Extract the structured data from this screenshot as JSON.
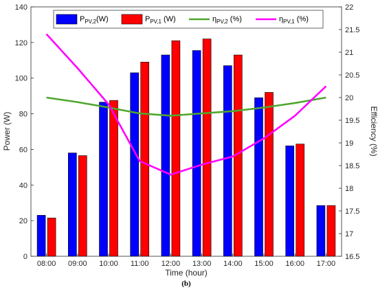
{
  "chart_data": {
    "type": "bar",
    "categories": [
      "08:00",
      "09:00",
      "10:00",
      "11:00",
      "12:00",
      "13:00",
      "14:00",
      "15:00",
      "16:00",
      "17:00"
    ],
    "series": [
      {
        "name": "P_PV,2 (W)",
        "label_main": "P",
        "label_sub": "PV,2",
        "label_tail": "(W)",
        "axis": "left",
        "kind": "bar",
        "color": "#0000ff",
        "values": [
          23,
          58,
          86.5,
          103,
          113,
          115.5,
          107,
          89,
          62,
          28.5
        ]
      },
      {
        "name": "P_PV,1 (W)",
        "label_main": "P",
        "label_sub": "PV,1",
        "label_tail": " (W)",
        "axis": "left",
        "kind": "bar",
        "color": "#ff0000",
        "values": [
          21.5,
          56.5,
          87.5,
          109,
          121,
          122,
          113,
          92,
          63,
          28.5
        ]
      },
      {
        "name": "η_PV,2 (%)",
        "label_main": "η",
        "label_sub": "PV,2",
        "label_tail": " (%)",
        "axis": "right",
        "kind": "line",
        "color": "#4ea72e",
        "values": [
          20.0,
          19.9,
          19.78,
          19.65,
          19.6,
          19.65,
          19.7,
          19.78,
          19.88,
          20.0
        ]
      },
      {
        "name": "η_PV,1 (%)",
        "label_main": "η",
        "label_sub": "PV,1",
        "label_tail": " (%)",
        "axis": "right",
        "kind": "line",
        "color": "#ff00ff",
        "values": [
          21.4,
          20.65,
          19.85,
          18.6,
          18.3,
          18.52,
          18.7,
          19.1,
          19.6,
          20.25
        ]
      }
    ],
    "xlabel": "Time (hour)",
    "ylabel": "Power (W)",
    "y2label": "Efficiency (%)",
    "ylim": [
      0,
      140
    ],
    "yticks": [
      "0",
      "20",
      "40",
      "60",
      "80",
      "100",
      "120",
      "140"
    ],
    "y2lim": [
      16.5,
      22
    ],
    "y2ticks": [
      "16.5",
      "17",
      "17.5",
      "18",
      "18.5",
      "19",
      "19.5",
      "20",
      "20.5",
      "21",
      "21.5",
      "22"
    ],
    "grid": false,
    "legend": "top",
    "caption": "(b)"
  }
}
